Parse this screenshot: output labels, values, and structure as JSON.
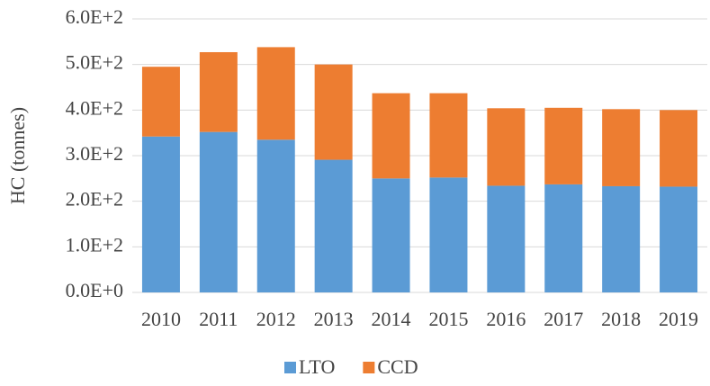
{
  "chart_data": {
    "type": "stacked_bar",
    "y_label": "HC (tonnes)",
    "categories": [
      "2010",
      "2011",
      "2012",
      "2013",
      "2014",
      "2015",
      "2016",
      "2017",
      "2018",
      "2019"
    ],
    "series": [
      {
        "name": "LTO",
        "color": "#5b9bd5",
        "values": [
          342,
          352,
          335,
          291,
          250,
          252,
          234,
          237,
          233,
          232
        ]
      },
      {
        "name": "CCD",
        "color": "#ed7d31",
        "values": [
          153,
          175,
          203,
          209,
          187,
          185,
          170,
          168,
          169,
          168
        ]
      }
    ],
    "ylim": [
      0,
      600
    ],
    "yticks": [
      {
        "value": 0,
        "label": "0.0E+0"
      },
      {
        "value": 100,
        "label": "1.0E+2"
      },
      {
        "value": 200,
        "label": "2.0E+2"
      },
      {
        "value": 300,
        "label": "3.0E+2"
      },
      {
        "value": 400,
        "label": "4.0E+2"
      },
      {
        "value": 500,
        "label": "5.0E+2"
      },
      {
        "value": 600,
        "label": "6.0E+2"
      }
    ],
    "grid": true,
    "legend": "bottom"
  }
}
